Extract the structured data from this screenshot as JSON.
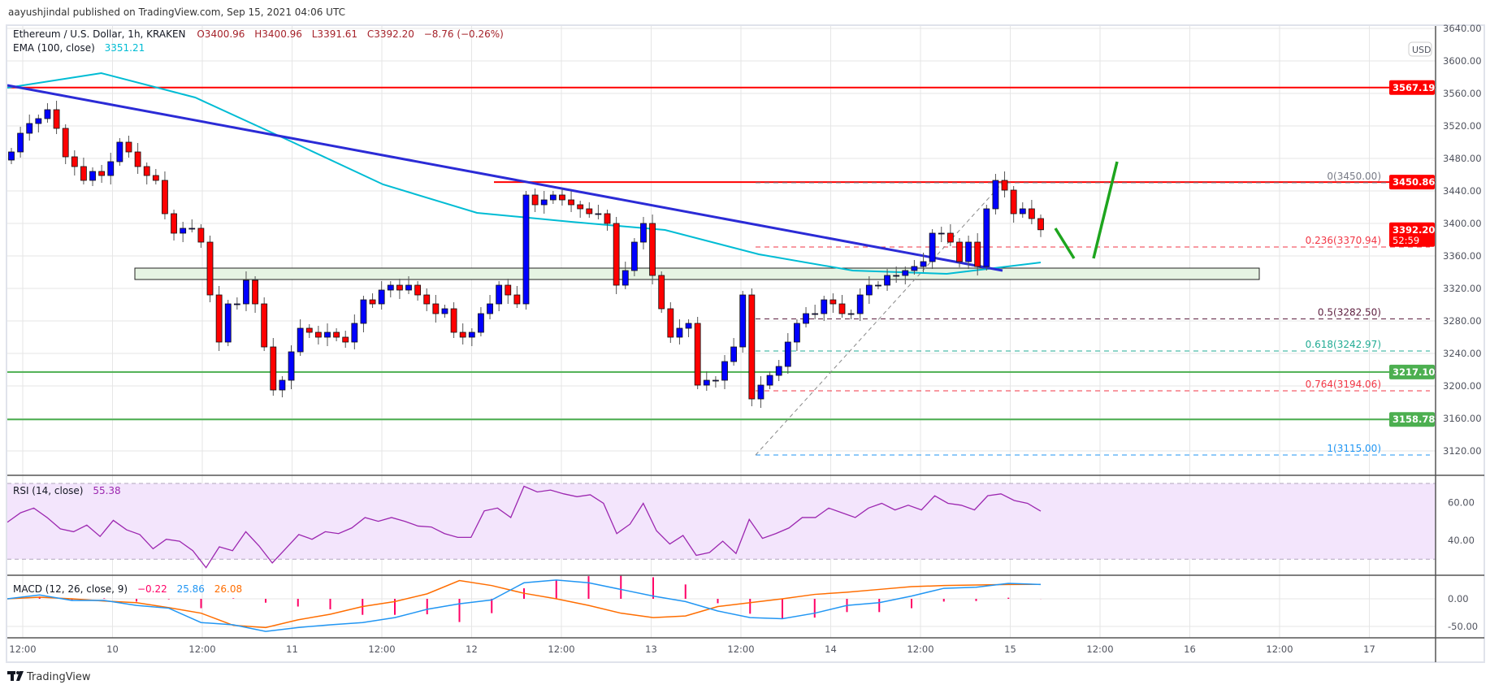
{
  "header": {
    "published": "aayushjindal published on TradingView.com, Sep 15, 2021 04:06 UTC",
    "brand": "TradingView"
  },
  "legend": {
    "symbol": "Ethereum / U.S. Dollar, 1h, KRAKEN",
    "open": "O3400.96",
    "high": "H3400.96",
    "low": "L3391.61",
    "close": "C3392.20",
    "change": "−8.76 (−0.26%)",
    "ema_label": "EMA (100, close)",
    "ema_value": "3351.21",
    "rsi_label": "RSI (14, close)",
    "rsi_value": "55.38",
    "macd_label": "MACD (12, 26, close, 9)",
    "macd_hist": "−0.22",
    "macd_value": "25.86",
    "macd_signal": "26.08"
  },
  "axis": {
    "currency": "USD",
    "price_ticks": [
      "3640.00",
      "3600.00",
      "3560.00",
      "3520.00",
      "3480.00",
      "3440.00",
      "3400.00",
      "3360.00",
      "3320.00",
      "3280.00",
      "3240.00",
      "3200.00",
      "3160.00",
      "3120.00"
    ],
    "rsi_ticks": [
      "60.00",
      "40.00"
    ],
    "macd_ticks": [
      "0.00",
      "-50.00"
    ],
    "time_ticks": [
      "12:00",
      "10",
      "12:00",
      "11",
      "12:00",
      "12",
      "12:00",
      "13",
      "12:00",
      "14",
      "12:00",
      "15",
      "12:00",
      "16",
      "12:00",
      "17"
    ],
    "price_labels": [
      {
        "text": "3567.19",
        "color": "#ff0000"
      },
      {
        "text": "3450.86",
        "color": "#ff0000"
      },
      {
        "text": "3217.10",
        "color": "#4caf50"
      },
      {
        "text": "3158.78",
        "color": "#4caf50"
      }
    ],
    "last_price": "3392.20",
    "countdown": "52:59"
  },
  "colors": {
    "up": "#0000ff",
    "down": "#ff0000",
    "ema": "#00bcd4",
    "trendline": "#2b2bd6",
    "resistance": "#ff0000",
    "support": "#4caf50",
    "rsi": "#9c27b0",
    "macd": "#2196f3",
    "signal": "#ff6d00",
    "hist": "#ff0066",
    "arrow": "#1ea51e"
  },
  "chart_data": {
    "type": "candlestick",
    "title": "Ethereum / U.S. Dollar, 1h, KRAKEN",
    "ylim": [
      3087,
      3644
    ],
    "closes": [
      3488,
      3511,
      3523,
      3529,
      3540,
      3517,
      3482,
      3470,
      3453,
      3464,
      3459,
      3476,
      3500,
      3488,
      3470,
      3459,
      3453,
      3412,
      3388,
      3394,
      3394,
      3377,
      3312,
      3254,
      3301,
      3301,
      3330,
      3301,
      3248,
      3195,
      3207,
      3242,
      3271,
      3266,
      3260,
      3266,
      3260,
      3254,
      3277,
      3306,
      3301,
      3318,
      3324,
      3318,
      3324,
      3312,
      3301,
      3289,
      3295,
      3266,
      3260,
      3266,
      3289,
      3301,
      3324,
      3312,
      3301,
      3435,
      3423,
      3429,
      3435,
      3429,
      3423,
      3418,
      3412,
      3412,
      3400,
      3324,
      3342,
      3377,
      3400,
      3336,
      3295,
      3260,
      3271,
      3277,
      3201,
      3207,
      3207,
      3230,
      3248,
      3312,
      3184,
      3201,
      3213,
      3224,
      3254,
      3277,
      3289,
      3289,
      3306,
      3301,
      3289,
      3289,
      3312,
      3324,
      3324,
      3336,
      3336,
      3342,
      3347,
      3353,
      3388,
      3388,
      3377,
      3353,
      3377,
      3347,
      3418,
      3453,
      3441,
      3412,
      3418,
      3406,
      3392.2
    ],
    "first_open": 3478,
    "ema100": [
      3567,
      3585,
      3555,
      3502,
      3448,
      3413,
      3402,
      3392,
      3362,
      3342,
      3338,
      3352
    ],
    "horizontal_levels": {
      "resistance": [
        3567.19,
        3450.86
      ],
      "support": [
        3217.1,
        3158.78
      ]
    },
    "trendline": [
      3570,
      3342
    ],
    "support_zone": [
      3331,
      3345
    ],
    "fibonacci": [
      {
        "ratio": "0",
        "price": 3450.0,
        "text": "0(3450.00)",
        "color": "#787b86"
      },
      {
        "ratio": "0.236",
        "price": 3370.94,
        "text": "0.236(3370.94)",
        "color": "#f23645"
      },
      {
        "ratio": "0.5",
        "price": 3282.5,
        "text": "0.5(3282.50)",
        "color": "#5d1f3f"
      },
      {
        "ratio": "0.618",
        "price": 3242.97,
        "text": "0.618(3242.97)",
        "color": "#22ab94"
      },
      {
        "ratio": "0.764",
        "price": 3194.06,
        "text": "0.764(3194.06)",
        "color": "#f23645"
      },
      {
        "ratio": "1",
        "price": 3115.0,
        "text": "1(3115.00)",
        "color": "#2196f3"
      }
    ],
    "rsi": [
      49.5,
      54.5,
      57,
      52,
      46,
      44.5,
      48,
      42,
      50.5,
      45.5,
      43,
      35.5,
      40.5,
      39.5,
      34.5,
      25.5,
      36.5,
      34.5,
      44.5,
      37,
      28,
      35.5,
      43,
      40.5,
      44.5,
      43.5,
      46.5,
      52,
      50,
      52,
      50,
      47.5,
      47,
      43.5,
      41.5,
      41.5,
      55.5,
      57,
      52,
      68.5,
      65.5,
      66.5,
      64.5,
      63,
      64,
      59.5,
      43.5,
      48.5,
      59.5,
      45,
      38,
      42.5,
      32,
      33.5,
      39.5,
      33,
      51,
      41,
      43.5,
      46.5,
      52,
      52,
      57,
      54.5,
      52,
      57,
      59.5,
      56,
      58.5,
      56,
      63.5,
      59.5,
      58.5,
      56,
      63.5,
      64.5,
      61,
      59.5,
      55.4
    ],
    "rsi_bands": [
      70,
      30
    ],
    "macd": [
      0,
      7,
      -3,
      -3,
      -12,
      -17,
      -43,
      -47,
      -59,
      -52,
      -47,
      -43,
      -34,
      -19,
      -9,
      -2,
      29,
      34,
      29,
      17,
      5,
      -5,
      -22,
      -34,
      -36,
      -26,
      -12,
      -7,
      5,
      19,
      21,
      28,
      25.9
    ],
    "signal": [
      0,
      3,
      0,
      -4,
      -7,
      -16,
      -26,
      -48,
      -52,
      -38,
      -28,
      -14,
      -5,
      9,
      33,
      24,
      10,
      0,
      -12,
      -26,
      -34,
      -31,
      -14,
      -7,
      0,
      8,
      12,
      17,
      22,
      24,
      25,
      26,
      26.1
    ]
  }
}
